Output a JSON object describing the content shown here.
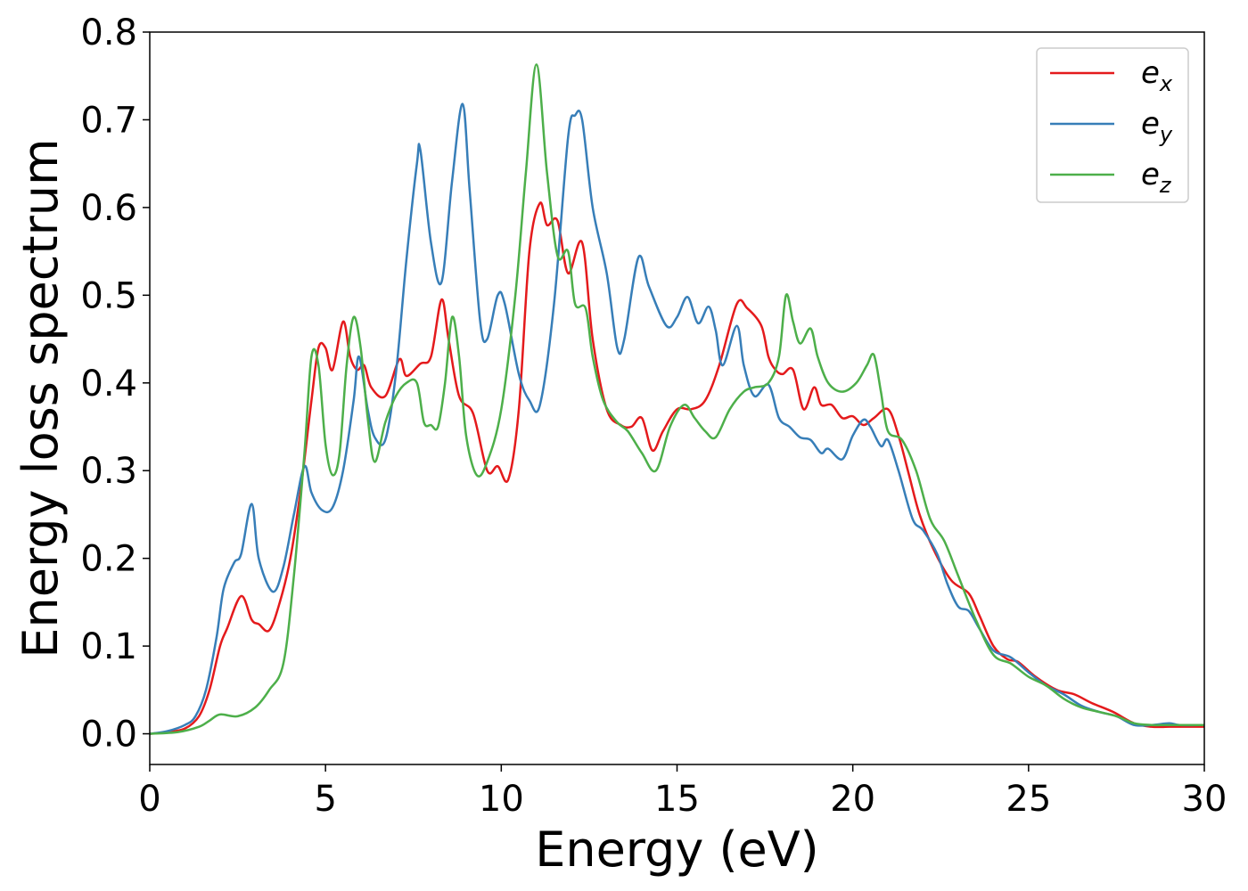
{
  "chart_data": {
    "type": "line",
    "xlabel": "Energy (eV)",
    "ylabel": "Energy loss spectrum",
    "xlim": [
      0,
      30
    ],
    "ylim": [
      -0.035,
      0.8
    ],
    "x_ticks": [
      0,
      5,
      10,
      15,
      20,
      25,
      30
    ],
    "x_tick_labels": [
      "0",
      "5",
      "10",
      "15",
      "20",
      "25",
      "30"
    ],
    "y_ticks": [
      0.0,
      0.1,
      0.2,
      0.3,
      0.4,
      0.5,
      0.6,
      0.7,
      0.8
    ],
    "y_tick_labels": [
      "0.0",
      "0.1",
      "0.2",
      "0.3",
      "0.4",
      "0.5",
      "0.6",
      "0.7",
      "0.8"
    ],
    "grid": false,
    "legend_position": "top-right",
    "colors": {
      "ex": "#e41a1c",
      "ey": "#377eb8",
      "ez": "#4daf4a"
    },
    "series": [
      {
        "name": "e_x",
        "legend_base": "e",
        "legend_sub": "x",
        "color": "#e41a1c",
        "points": [
          [
            0,
            0
          ],
          [
            0.5,
            0.002
          ],
          [
            1,
            0.006
          ],
          [
            1.4,
            0.02
          ],
          [
            1.7,
            0.05
          ],
          [
            2,
            0.1
          ],
          [
            2.2,
            0.12
          ],
          [
            2.6,
            0.157
          ],
          [
            2.9,
            0.13
          ],
          [
            3.1,
            0.125
          ],
          [
            3.4,
            0.118
          ],
          [
            3.7,
            0.15
          ],
          [
            4,
            0.2
          ],
          [
            4.3,
            0.28
          ],
          [
            4.6,
            0.38
          ],
          [
            4.8,
            0.44
          ],
          [
            5,
            0.44
          ],
          [
            5.2,
            0.415
          ],
          [
            5.5,
            0.47
          ],
          [
            5.7,
            0.43
          ],
          [
            5.9,
            0.415
          ],
          [
            6.1,
            0.42
          ],
          [
            6.3,
            0.395
          ],
          [
            6.7,
            0.385
          ],
          [
            7.1,
            0.427
          ],
          [
            7.3,
            0.408
          ],
          [
            7.7,
            0.422
          ],
          [
            8,
            0.43
          ],
          [
            8.3,
            0.495
          ],
          [
            8.5,
            0.45
          ],
          [
            8.8,
            0.385
          ],
          [
            9.2,
            0.365
          ],
          [
            9.6,
            0.3
          ],
          [
            9.9,
            0.305
          ],
          [
            10.2,
            0.29
          ],
          [
            10.5,
            0.37
          ],
          [
            10.8,
            0.55
          ],
          [
            11.1,
            0.605
          ],
          [
            11.3,
            0.58
          ],
          [
            11.6,
            0.585
          ],
          [
            11.9,
            0.525
          ],
          [
            12.3,
            0.56
          ],
          [
            12.6,
            0.45
          ],
          [
            13,
            0.37
          ],
          [
            13.4,
            0.352
          ],
          [
            13.7,
            0.35
          ],
          [
            14,
            0.36
          ],
          [
            14.3,
            0.323
          ],
          [
            14.6,
            0.345
          ],
          [
            15,
            0.37
          ],
          [
            15.4,
            0.37
          ],
          [
            15.8,
            0.38
          ],
          [
            16.2,
            0.42
          ],
          [
            16.7,
            0.49
          ],
          [
            17,
            0.485
          ],
          [
            17.4,
            0.465
          ],
          [
            17.6,
            0.43
          ],
          [
            17.8,
            0.415
          ],
          [
            18,
            0.41
          ],
          [
            18.3,
            0.415
          ],
          [
            18.6,
            0.37
          ],
          [
            18.9,
            0.395
          ],
          [
            19.1,
            0.375
          ],
          [
            19.4,
            0.375
          ],
          [
            19.7,
            0.36
          ],
          [
            20,
            0.362
          ],
          [
            20.3,
            0.352
          ],
          [
            20.6,
            0.36
          ],
          [
            21,
            0.37
          ],
          [
            21.3,
            0.34
          ],
          [
            21.6,
            0.295
          ],
          [
            21.9,
            0.25
          ],
          [
            22.3,
            0.21
          ],
          [
            22.8,
            0.175
          ],
          [
            23.3,
            0.16
          ],
          [
            23.6,
            0.135
          ],
          [
            24,
            0.1
          ],
          [
            24.4,
            0.085
          ],
          [
            24.7,
            0.082
          ],
          [
            25.2,
            0.065
          ],
          [
            25.8,
            0.05
          ],
          [
            26.3,
            0.045
          ],
          [
            26.8,
            0.035
          ],
          [
            27.4,
            0.025
          ],
          [
            28,
            0.012
          ],
          [
            28.5,
            0.008
          ],
          [
            29,
            0.008
          ],
          [
            29.5,
            0.008
          ],
          [
            30,
            0.008
          ]
        ]
      },
      {
        "name": "e_y",
        "legend_base": "e",
        "legend_sub": "y",
        "color": "#377eb8",
        "points": [
          [
            0,
            0
          ],
          [
            0.5,
            0.003
          ],
          [
            1,
            0.01
          ],
          [
            1.3,
            0.02
          ],
          [
            1.6,
            0.05
          ],
          [
            1.9,
            0.11
          ],
          [
            2.1,
            0.165
          ],
          [
            2.4,
            0.195
          ],
          [
            2.6,
            0.205
          ],
          [
            2.9,
            0.262
          ],
          [
            3.1,
            0.2
          ],
          [
            3.5,
            0.162
          ],
          [
            3.8,
            0.19
          ],
          [
            4.1,
            0.25
          ],
          [
            4.4,
            0.305
          ],
          [
            4.6,
            0.275
          ],
          [
            4.9,
            0.255
          ],
          [
            5.2,
            0.258
          ],
          [
            5.5,
            0.3
          ],
          [
            5.8,
            0.38
          ],
          [
            5.95,
            0.43
          ],
          [
            6.2,
            0.37
          ],
          [
            6.4,
            0.338
          ],
          [
            6.7,
            0.335
          ],
          [
            7,
            0.41
          ],
          [
            7.3,
            0.54
          ],
          [
            7.6,
            0.65
          ],
          [
            7.7,
            0.665
          ],
          [
            8,
            0.56
          ],
          [
            8.3,
            0.515
          ],
          [
            8.6,
            0.63
          ],
          [
            8.9,
            0.718
          ],
          [
            9.1,
            0.62
          ],
          [
            9.4,
            0.47
          ],
          [
            9.6,
            0.45
          ],
          [
            9.9,
            0.5
          ],
          [
            10.1,
            0.49
          ],
          [
            10.5,
            0.41
          ],
          [
            10.8,
            0.38
          ],
          [
            11.1,
            0.375
          ],
          [
            11.5,
            0.49
          ],
          [
            11.9,
            0.68
          ],
          [
            12.1,
            0.705
          ],
          [
            12.3,
            0.7
          ],
          [
            12.6,
            0.6
          ],
          [
            13,
            0.525
          ],
          [
            13.3,
            0.44
          ],
          [
            13.5,
            0.45
          ],
          [
            13.9,
            0.543
          ],
          [
            14.2,
            0.51
          ],
          [
            14.7,
            0.465
          ],
          [
            15,
            0.475
          ],
          [
            15.3,
            0.498
          ],
          [
            15.6,
            0.468
          ],
          [
            15.9,
            0.487
          ],
          [
            16.1,
            0.46
          ],
          [
            16.3,
            0.42
          ],
          [
            16.7,
            0.465
          ],
          [
            16.9,
            0.42
          ],
          [
            17.2,
            0.385
          ],
          [
            17.6,
            0.398
          ],
          [
            17.9,
            0.36
          ],
          [
            18.2,
            0.35
          ],
          [
            18.5,
            0.338
          ],
          [
            18.8,
            0.335
          ],
          [
            19.1,
            0.32
          ],
          [
            19.3,
            0.325
          ],
          [
            19.7,
            0.313
          ],
          [
            20,
            0.34
          ],
          [
            20.3,
            0.358
          ],
          [
            20.5,
            0.35
          ],
          [
            20.8,
            0.328
          ],
          [
            21,
            0.335
          ],
          [
            21.3,
            0.3
          ],
          [
            21.7,
            0.245
          ],
          [
            22,
            0.232
          ],
          [
            22.4,
            0.205
          ],
          [
            22.7,
            0.17
          ],
          [
            23,
            0.145
          ],
          [
            23.3,
            0.14
          ],
          [
            23.6,
            0.12
          ],
          [
            24,
            0.095
          ],
          [
            24.5,
            0.087
          ],
          [
            25,
            0.07
          ],
          [
            25.5,
            0.055
          ],
          [
            26,
            0.045
          ],
          [
            26.5,
            0.032
          ],
          [
            27,
            0.025
          ],
          [
            27.5,
            0.02
          ],
          [
            28,
            0.01
          ],
          [
            28.5,
            0.01
          ],
          [
            29,
            0.012
          ],
          [
            29.3,
            0.01
          ],
          [
            30,
            0.01
          ]
        ]
      },
      {
        "name": "e_z",
        "legend_base": "e",
        "legend_sub": "z",
        "color": "#4daf4a",
        "points": [
          [
            0,
            0
          ],
          [
            0.8,
            0.002
          ],
          [
            1.4,
            0.008
          ],
          [
            1.7,
            0.015
          ],
          [
            2,
            0.022
          ],
          [
            2.5,
            0.02
          ],
          [
            3,
            0.03
          ],
          [
            3.4,
            0.05
          ],
          [
            3.8,
            0.08
          ],
          [
            4.1,
            0.18
          ],
          [
            4.4,
            0.32
          ],
          [
            4.6,
            0.43
          ],
          [
            4.8,
            0.42
          ],
          [
            5,
            0.33
          ],
          [
            5.2,
            0.295
          ],
          [
            5.4,
            0.32
          ],
          [
            5.6,
            0.42
          ],
          [
            5.8,
            0.475
          ],
          [
            6,
            0.44
          ],
          [
            6.2,
            0.36
          ],
          [
            6.4,
            0.31
          ],
          [
            6.7,
            0.355
          ],
          [
            7,
            0.385
          ],
          [
            7.3,
            0.4
          ],
          [
            7.6,
            0.4
          ],
          [
            7.8,
            0.355
          ],
          [
            8,
            0.352
          ],
          [
            8.2,
            0.35
          ],
          [
            8.4,
            0.4
          ],
          [
            8.6,
            0.475
          ],
          [
            8.8,
            0.43
          ],
          [
            9,
            0.34
          ],
          [
            9.3,
            0.295
          ],
          [
            9.6,
            0.31
          ],
          [
            10,
            0.37
          ],
          [
            10.4,
            0.5
          ],
          [
            10.7,
            0.64
          ],
          [
            11,
            0.763
          ],
          [
            11.3,
            0.64
          ],
          [
            11.6,
            0.545
          ],
          [
            11.9,
            0.55
          ],
          [
            12.1,
            0.49
          ],
          [
            12.4,
            0.485
          ],
          [
            12.6,
            0.43
          ],
          [
            12.9,
            0.38
          ],
          [
            13.3,
            0.355
          ],
          [
            13.6,
            0.345
          ],
          [
            14,
            0.32
          ],
          [
            14.4,
            0.3
          ],
          [
            14.8,
            0.35
          ],
          [
            15.2,
            0.375
          ],
          [
            15.5,
            0.36
          ],
          [
            15.8,
            0.345
          ],
          [
            16.1,
            0.338
          ],
          [
            16.5,
            0.37
          ],
          [
            16.9,
            0.39
          ],
          [
            17.2,
            0.395
          ],
          [
            17.6,
            0.4
          ],
          [
            17.9,
            0.43
          ],
          [
            18.1,
            0.5
          ],
          [
            18.3,
            0.47
          ],
          [
            18.5,
            0.445
          ],
          [
            18.8,
            0.462
          ],
          [
            19,
            0.43
          ],
          [
            19.3,
            0.4
          ],
          [
            19.7,
            0.39
          ],
          [
            20.1,
            0.4
          ],
          [
            20.4,
            0.42
          ],
          [
            20.6,
            0.432
          ],
          [
            20.8,
            0.39
          ],
          [
            21,
            0.345
          ],
          [
            21.4,
            0.335
          ],
          [
            21.8,
            0.3
          ],
          [
            22.2,
            0.245
          ],
          [
            22.6,
            0.22
          ],
          [
            23,
            0.18
          ],
          [
            23.5,
            0.13
          ],
          [
            24,
            0.09
          ],
          [
            24.5,
            0.08
          ],
          [
            25,
            0.065
          ],
          [
            25.5,
            0.055
          ],
          [
            26,
            0.04
          ],
          [
            26.5,
            0.03
          ],
          [
            27,
            0.025
          ],
          [
            27.5,
            0.02
          ],
          [
            28,
            0.012
          ],
          [
            28.5,
            0.01
          ],
          [
            29,
            0.01
          ],
          [
            30,
            0.01
          ]
        ]
      }
    ]
  }
}
